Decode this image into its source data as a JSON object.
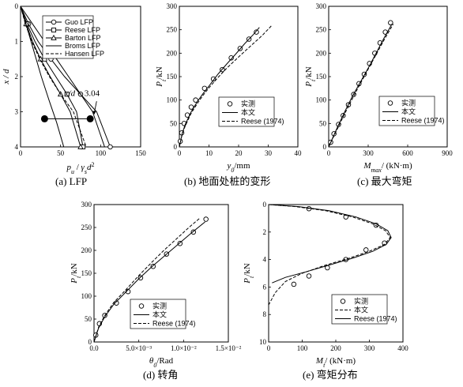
{
  "chart_data": [
    {
      "id": "a",
      "type": "line",
      "caption": "(a) LFP",
      "xlabel_main": "p",
      "xlabel_main_sub": "u",
      "xlabel_sep": " / ",
      "xlabel_den": "γ",
      "xlabel_den_sub": "s",
      "xlabel_den_tail": "d",
      "xlabel_den_sup": "2",
      "ylabel": "x / d",
      "xlim": [
        0,
        150
      ],
      "ylim": [
        0,
        4
      ],
      "y_reversed": true,
      "xticks": [
        0,
        50,
        100,
        150
      ],
      "yticks": [
        0,
        1,
        2,
        3,
        4
      ],
      "legend": [
        {
          "name": "Guo LFP",
          "marker": "circle",
          "dash": "solid"
        },
        {
          "name": "Reese LFP",
          "marker": "square",
          "dash": "solid"
        },
        {
          "name": "Barton LFP",
          "marker": "triangle",
          "dash": "solid"
        },
        {
          "name": "Broms LFP",
          "marker": "none",
          "dash": "solid"
        },
        {
          "name": "Hansen LFP",
          "marker": "none",
          "dash": "dashed"
        }
      ],
      "series": [
        {
          "name": "Guo LFP",
          "x": [
            0,
            10,
            22,
            38,
            55,
            75,
            95,
            112
          ],
          "y": [
            0,
            0.5,
            1.0,
            1.5,
            2.0,
            2.5,
            3.0,
            4.0
          ]
        },
        {
          "name": "Reese LFP",
          "x": [
            0,
            8,
            18,
            30,
            44,
            58,
            70,
            78
          ],
          "y": [
            0,
            0.5,
            1.0,
            1.5,
            2.0,
            2.5,
            3.0,
            4.0
          ]
        },
        {
          "name": "Barton LFP",
          "x": [
            0,
            7,
            15,
            25,
            37,
            50,
            62,
            75
          ],
          "y": [
            0,
            0.5,
            1.0,
            1.5,
            2.0,
            2.5,
            3.0,
            4.0
          ]
        },
        {
          "name": "Broms LFP",
          "x": [
            0,
            15,
            30,
            45,
            60,
            75,
            90,
            105
          ],
          "y": [
            0,
            0.5,
            1.0,
            1.5,
            2.0,
            2.5,
            3.0,
            4.0
          ]
        },
        {
          "name": "Hansen LFP",
          "x": [
            0,
            6,
            14,
            24,
            36,
            50,
            66,
            82
          ],
          "y": [
            0,
            0.5,
            1.0,
            1.5,
            2.0,
            2.5,
            3.0,
            4.0
          ]
        },
        {
          "name": "",
          "x": [
            0,
            8,
            17,
            26,
            36,
            45,
            54
          ],
          "y": [
            0,
            0.6,
            1.3,
            2.0,
            2.7,
            3.3,
            4.0
          ]
        }
      ],
      "markers": [
        {
          "x": 30,
          "y": 3.2
        },
        {
          "x": 87,
          "y": 3.2
        }
      ],
      "annotation": {
        "prefix": "x/d",
        "eq": " = ",
        "value": "3.04",
        "x": 55,
        "y": 2.55
      }
    },
    {
      "id": "b",
      "type": "line",
      "caption": "(b) 地面处桩的变形",
      "xlabel": "y",
      "xlabel_sub": "0",
      "xlabel_tail": "/mm",
      "ylabel": "P",
      "ylabel_sub": "t",
      "ylabel_tail": "/kN",
      "xlim": [
        0,
        40
      ],
      "ylim": [
        0,
        300
      ],
      "xticks": [
        0,
        10,
        20,
        30,
        40
      ],
      "yticks": [
        0,
        50,
        100,
        150,
        200,
        250,
        300
      ],
      "legend": [
        {
          "name": "实测",
          "marker": "circle",
          "dash": "none"
        },
        {
          "name": "本文",
          "marker": "none",
          "dash": "solid"
        },
        {
          "name": "Reese (1974)",
          "marker": "none",
          "dash": "dashed"
        }
      ],
      "series": [
        {
          "name": "实测",
          "x": [
            0.3,
            0.8,
            1.6,
            2.7,
            4.0,
            5.5,
            8.5,
            11.5,
            14.5,
            17.5,
            20.5,
            23.5,
            26.0
          ],
          "y": [
            12,
            30,
            50,
            68,
            85,
            100,
            125,
            145,
            165,
            190,
            210,
            230,
            245
          ]
        },
        {
          "name": "本文",
          "x": [
            0,
            1,
            2,
            4,
            6,
            8,
            10,
            13,
            16,
            19,
            22,
            25,
            27
          ],
          "y": [
            0,
            30,
            48,
            75,
            96,
            114,
            130,
            155,
            177,
            198,
            220,
            240,
            255
          ]
        },
        {
          "name": "Reese (1974)",
          "x": [
            0,
            1,
            2,
            4,
            6,
            8,
            10,
            13,
            16,
            20,
            24,
            28,
            31
          ],
          "y": [
            0,
            28,
            45,
            72,
            92,
            110,
            126,
            148,
            168,
            192,
            215,
            238,
            258
          ]
        }
      ]
    },
    {
      "id": "c",
      "type": "line",
      "caption": "(c) 最大弯矩",
      "xlabel": "M",
      "xlabel_sub": "max",
      "xlabel_tail": "/ (kN·m)",
      "ylabel": "P",
      "ylabel_sub": "t",
      "ylabel_tail": "/kN",
      "xlim": [
        0,
        900
      ],
      "ylim": [
        0,
        300
      ],
      "xticks": [
        0,
        300,
        600,
        900
      ],
      "yticks": [
        0,
        50,
        100,
        150,
        200,
        250,
        300
      ],
      "legend": [
        {
          "name": "实测",
          "marker": "circle",
          "dash": "none"
        },
        {
          "name": "本文",
          "marker": "none",
          "dash": "solid"
        },
        {
          "name": "Reese (1974)",
          "marker": "none",
          "dash": "dashed"
        }
      ],
      "series": [
        {
          "name": "实测",
          "x": [
            15,
            40,
            75,
            110,
            150,
            190,
            230,
            270,
            310,
            350,
            390,
            430,
            470
          ],
          "y": [
            10,
            28,
            48,
            67,
            90,
            112,
            135,
            155,
            178,
            200,
            222,
            245,
            265
          ]
        },
        {
          "name": "本文",
          "x": [
            0,
            60,
            120,
            180,
            240,
            300,
            360,
            420,
            480
          ],
          "y": [
            0,
            38,
            74,
            108,
            138,
            168,
            200,
            232,
            262
          ]
        },
        {
          "name": "Reese (1974)",
          "x": [
            0,
            60,
            120,
            180,
            240,
            300,
            360,
            420,
            490
          ],
          "y": [
            0,
            35,
            70,
            103,
            135,
            166,
            197,
            228,
            262
          ]
        }
      ]
    },
    {
      "id": "d",
      "type": "line",
      "caption": "(d) 转角",
      "xlabel": "θ",
      "xlabel_sub": "0",
      "xlabel_tail": "/Rad",
      "ylabel": "P",
      "ylabel_sub": "t",
      "ylabel_tail": "/kN",
      "xlim": [
        0,
        0.015
      ],
      "ylim": [
        0,
        300
      ],
      "xticks": [
        0,
        0.005,
        0.01,
        0.015
      ],
      "xtick_labels": [
        "0.0",
        "5.0×10⁻³",
        "1.0×10⁻²",
        "1.5×10⁻²"
      ],
      "yticks": [
        0,
        50,
        100,
        150,
        200,
        250,
        300
      ],
      "legend": [
        {
          "name": "实测",
          "marker": "circle",
          "dash": "none"
        },
        {
          "name": "本文",
          "marker": "none",
          "dash": "solid"
        },
        {
          "name": "Reese (1974)",
          "marker": "none",
          "dash": "dashed"
        }
      ],
      "series": [
        {
          "name": "实测",
          "x": [
            0.0002,
            0.0006,
            0.0012,
            0.0025,
            0.0038,
            0.0052,
            0.0066,
            0.0081,
            0.0096,
            0.0111,
            0.0125
          ],
          "y": [
            15,
            40,
            58,
            85,
            110,
            140,
            165,
            192,
            215,
            240,
            268
          ]
        },
        {
          "name": "本文",
          "x": [
            0,
            0.0005,
            0.0012,
            0.0022,
            0.0035,
            0.005,
            0.0065,
            0.008,
            0.0095,
            0.011,
            0.0124
          ],
          "y": [
            0,
            30,
            55,
            82,
            108,
            138,
            165,
            190,
            215,
            240,
            262
          ]
        },
        {
          "name": "Reese (1974)",
          "x": [
            0,
            0.0005,
            0.0012,
            0.0022,
            0.0035,
            0.005,
            0.0065,
            0.0078,
            0.0092,
            0.0106,
            0.0118
          ],
          "y": [
            0,
            32,
            58,
            86,
            113,
            145,
            175,
            200,
            225,
            250,
            270
          ]
        }
      ]
    },
    {
      "id": "e",
      "type": "line",
      "caption": "(e) 弯矩分布",
      "xlabel": "M",
      "xlabel_sub": "t",
      "xlabel_tail": "/ (kN·m)",
      "ylabel": "P",
      "ylabel_sub": "t",
      "ylabel_tail": "/kN",
      "xlim": [
        0,
        400
      ],
      "ylim": [
        0,
        10
      ],
      "y_reversed": true,
      "xticks": [
        0,
        100,
        200,
        300,
        400
      ],
      "yticks": [
        0,
        2,
        4,
        6,
        8,
        10
      ],
      "legend": [
        {
          "name": "实测",
          "marker": "circle",
          "dash": "none"
        },
        {
          "name": "本文",
          "marker": "none",
          "dash": "dashed"
        },
        {
          "name": "Reese (1974)",
          "marker": "none",
          "dash": "solid"
        }
      ],
      "series": [
        {
          "name": "实测",
          "x": [
            120,
            230,
            320,
            345,
            290,
            230,
            175,
            120,
            75
          ],
          "y": [
            0.3,
            0.9,
            1.5,
            2.8,
            3.3,
            4.0,
            4.6,
            5.2,
            5.8
          ]
        },
        {
          "name": "本文",
          "x": [
            0,
            80,
            170,
            250,
            310,
            348,
            362,
            345,
            300,
            240,
            170,
            100,
            50,
            20,
            0
          ],
          "y": [
            0,
            0.15,
            0.45,
            0.9,
            1.4,
            1.9,
            2.4,
            2.9,
            3.4,
            3.9,
            4.4,
            5.0,
            5.6,
            6.4,
            7.3
          ]
        },
        {
          "name": "Reese (1974)",
          "x": [
            0,
            90,
            180,
            260,
            320,
            355,
            365,
            350,
            310,
            250,
            180,
            110,
            50,
            10
          ],
          "y": [
            0,
            0.15,
            0.45,
            0.9,
            1.4,
            1.9,
            2.4,
            2.9,
            3.4,
            3.9,
            4.4,
            4.9,
            5.3,
            5.7
          ]
        }
      ]
    }
  ]
}
